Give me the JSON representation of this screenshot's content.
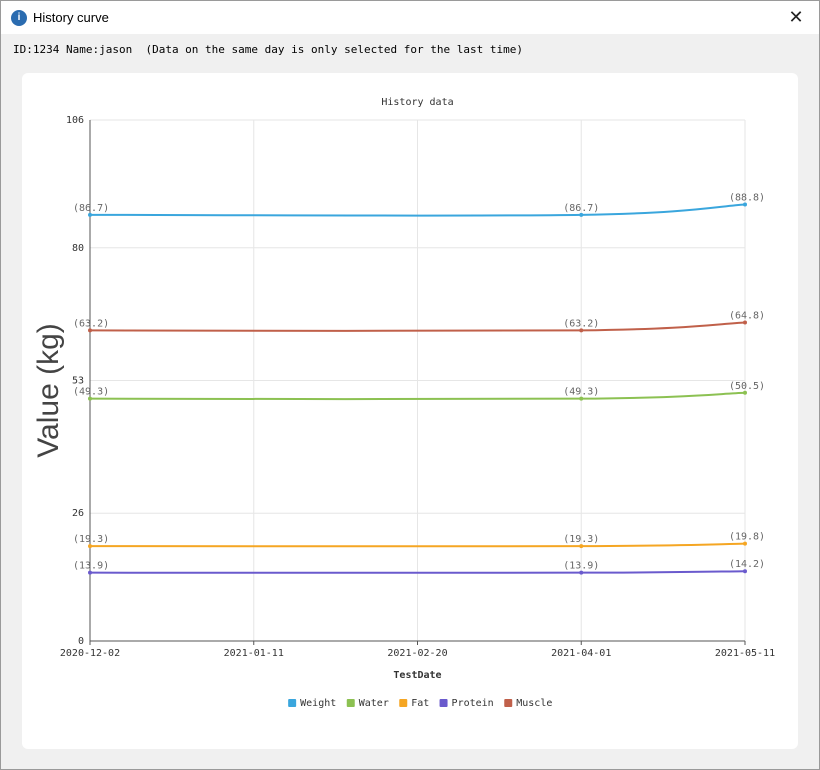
{
  "window": {
    "title": "History curve",
    "close_glyph": "✕",
    "app_icon_glyph": "i",
    "icon": "app-info-icon"
  },
  "info": {
    "text": "ID:1234 Name:jason  (Data on the same day is only selected for the last time)"
  },
  "chart_data": {
    "type": "line",
    "title": "History data",
    "xlabel": "TestDate",
    "ylabel": "Value (kg)",
    "x": [
      "2020-12-02",
      "2021-04-01",
      "2021-05-11"
    ],
    "x_ticks": [
      "2020-12-02",
      "2021-01-11",
      "2021-02-20",
      "2021-04-01",
      "2021-05-11"
    ],
    "ylim": [
      0,
      106
    ],
    "y_ticks": [
      0,
      26,
      53,
      80,
      106
    ],
    "grid": true,
    "smooth": true,
    "legend_position": "bottom",
    "series": [
      {
        "name": "Weight",
        "color": "#3aa6dd",
        "values": [
          86.7,
          86.7,
          88.8
        ],
        "labels": [
          "(86.7)",
          "(86.7)",
          "(88.8)"
        ]
      },
      {
        "name": "Water",
        "color": "#8cc152",
        "values": [
          49.3,
          49.3,
          50.5
        ],
        "labels": [
          "(49.3)",
          "(49.3)",
          "(50.5)"
        ]
      },
      {
        "name": "Fat",
        "color": "#f5a623",
        "values": [
          19.3,
          19.3,
          19.8
        ],
        "labels": [
          "(19.3)",
          "(19.3)",
          "(19.8)"
        ]
      },
      {
        "name": "Protein",
        "color": "#6a5acd",
        "values": [
          13.9,
          13.9,
          14.2
        ],
        "labels": [
          "(13.9)",
          "(13.9)",
          "(14.2)"
        ]
      },
      {
        "name": "Muscle",
        "color": "#c0604a",
        "values": [
          63.2,
          63.2,
          64.8
        ],
        "labels": [
          "(63.2)",
          "(63.2)",
          "(64.8)"
        ]
      }
    ]
  }
}
